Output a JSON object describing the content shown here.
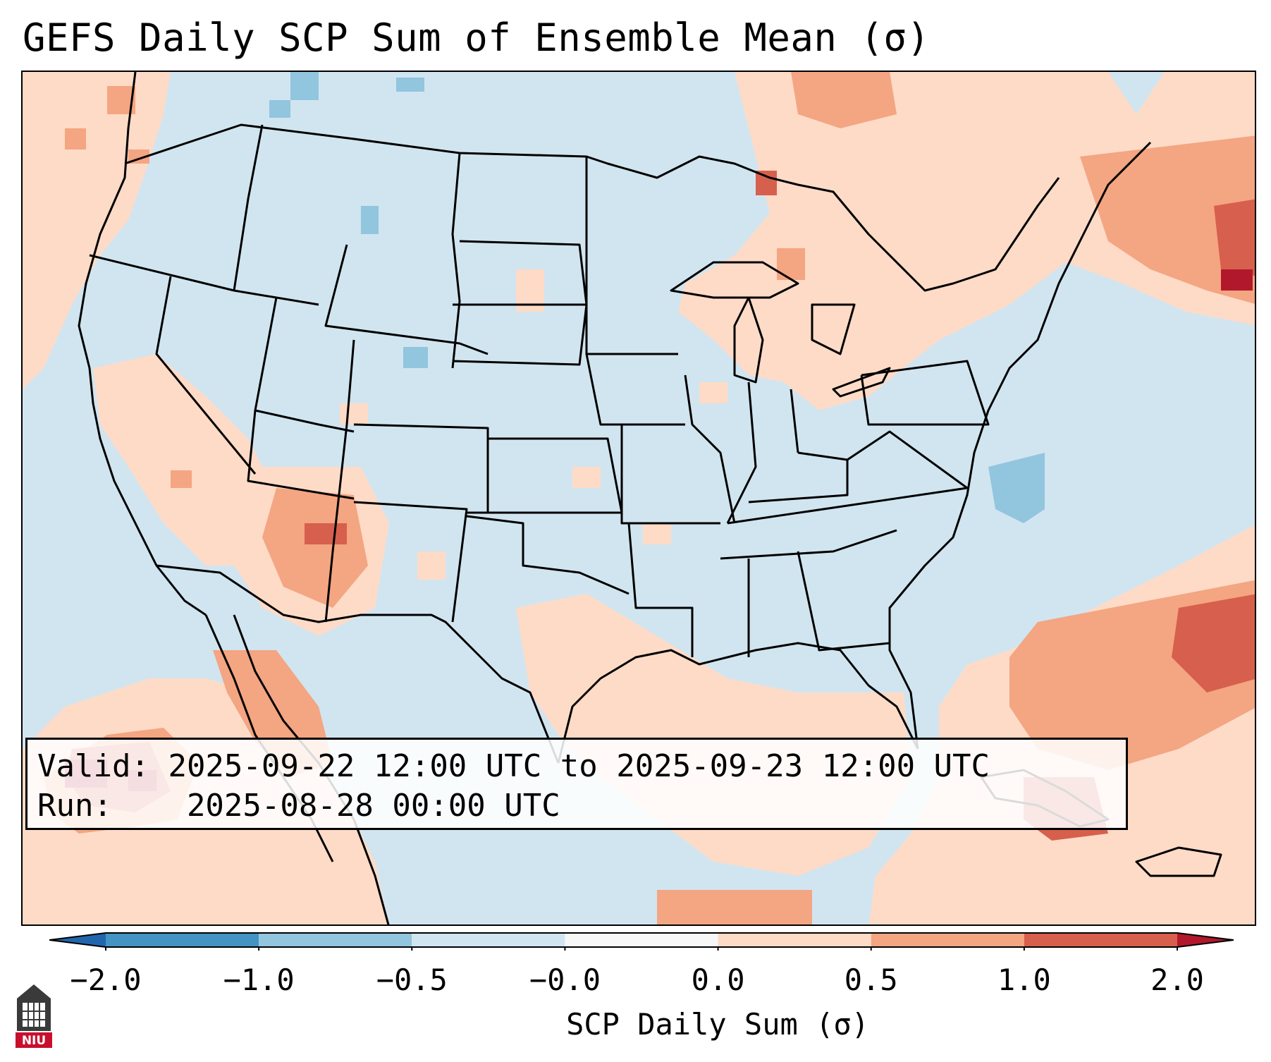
{
  "title": "GEFS Daily SCP Sum of Ensemble Mean (σ)",
  "info": {
    "valid_label": "Valid:",
    "valid_value": "2025-09-22 12:00 UTC to 2025-09-23 12:00 UTC",
    "run_label": "Run:",
    "run_value": "2025-08-28 00:00 UTC"
  },
  "colorbar": {
    "label": "SCP Daily Sum (σ)",
    "ticks": [
      "−2.0",
      "−1.0",
      "−0.5",
      "−0.0",
      "0.0",
      "0.5",
      "1.0",
      "2.0"
    ],
    "bins": [
      {
        "range": "< -2.0",
        "color": "#2166ac"
      },
      {
        "range": "-2.0 to -1.0",
        "color": "#4393c3"
      },
      {
        "range": "-1.0 to -0.5",
        "color": "#92c5de"
      },
      {
        "range": "-0.5 to -0.0",
        "color": "#d1e5f0"
      },
      {
        "range": "-0.0 to 0.0",
        "color": "#f7f7f7"
      },
      {
        "range": "0.0 to 0.5",
        "color": "#fddbc7"
      },
      {
        "range": "0.5 to 1.0",
        "color": "#f4a582"
      },
      {
        "range": "1.0 to 2.0",
        "color": "#d6604d"
      },
      {
        "range": "> 2.0",
        "color": "#b2182b"
      }
    ]
  },
  "logo": {
    "text": "NIU"
  }
}
